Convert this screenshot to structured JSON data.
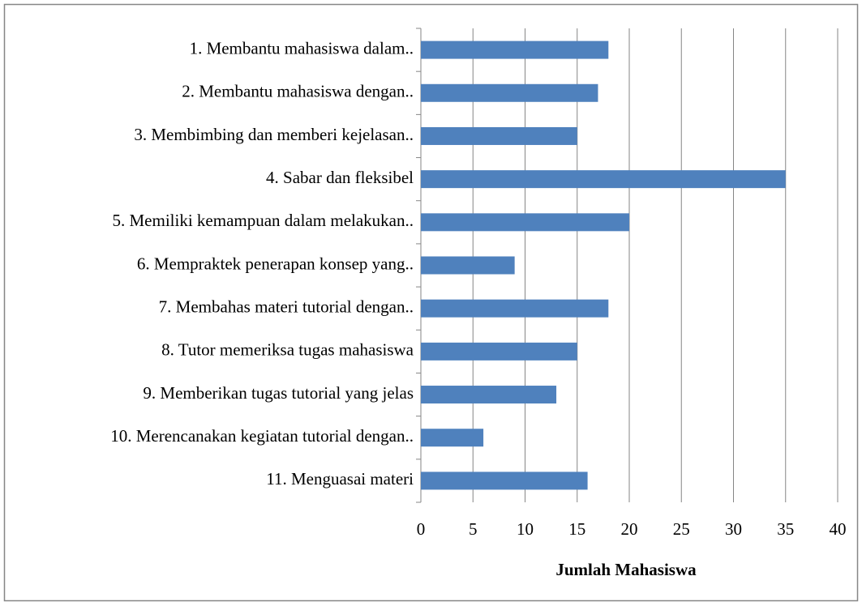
{
  "chart_data": {
    "type": "bar",
    "orientation": "horizontal",
    "categories": [
      "1. Membantu mahasiswa dalam..",
      "2. Membantu mahasiswa dengan..",
      "3. Membimbing dan memberi kejelasan..",
      "4. Sabar dan fleksibel",
      "5. Memiliki kemampuan dalam melakukan..",
      "6. Mempraktek penerapan konsep yang..",
      "7. Membahas materi tutorial dengan..",
      "8. Tutor memeriksa tugas mahasiswa",
      "9. Memberikan tugas tutorial yang jelas",
      "10. Merencanakan kegiatan tutorial dengan..",
      "11. Menguasai materi"
    ],
    "values": [
      18,
      17,
      15,
      35,
      20,
      9,
      18,
      15,
      13,
      6,
      16
    ],
    "color": "#4f81bd",
    "xlabel": "Jumlah Mahasiswa",
    "xlim": [
      0,
      40
    ],
    "xticks": [
      0,
      5,
      10,
      15,
      20,
      25,
      30,
      35,
      40
    ],
    "grid": true
  }
}
